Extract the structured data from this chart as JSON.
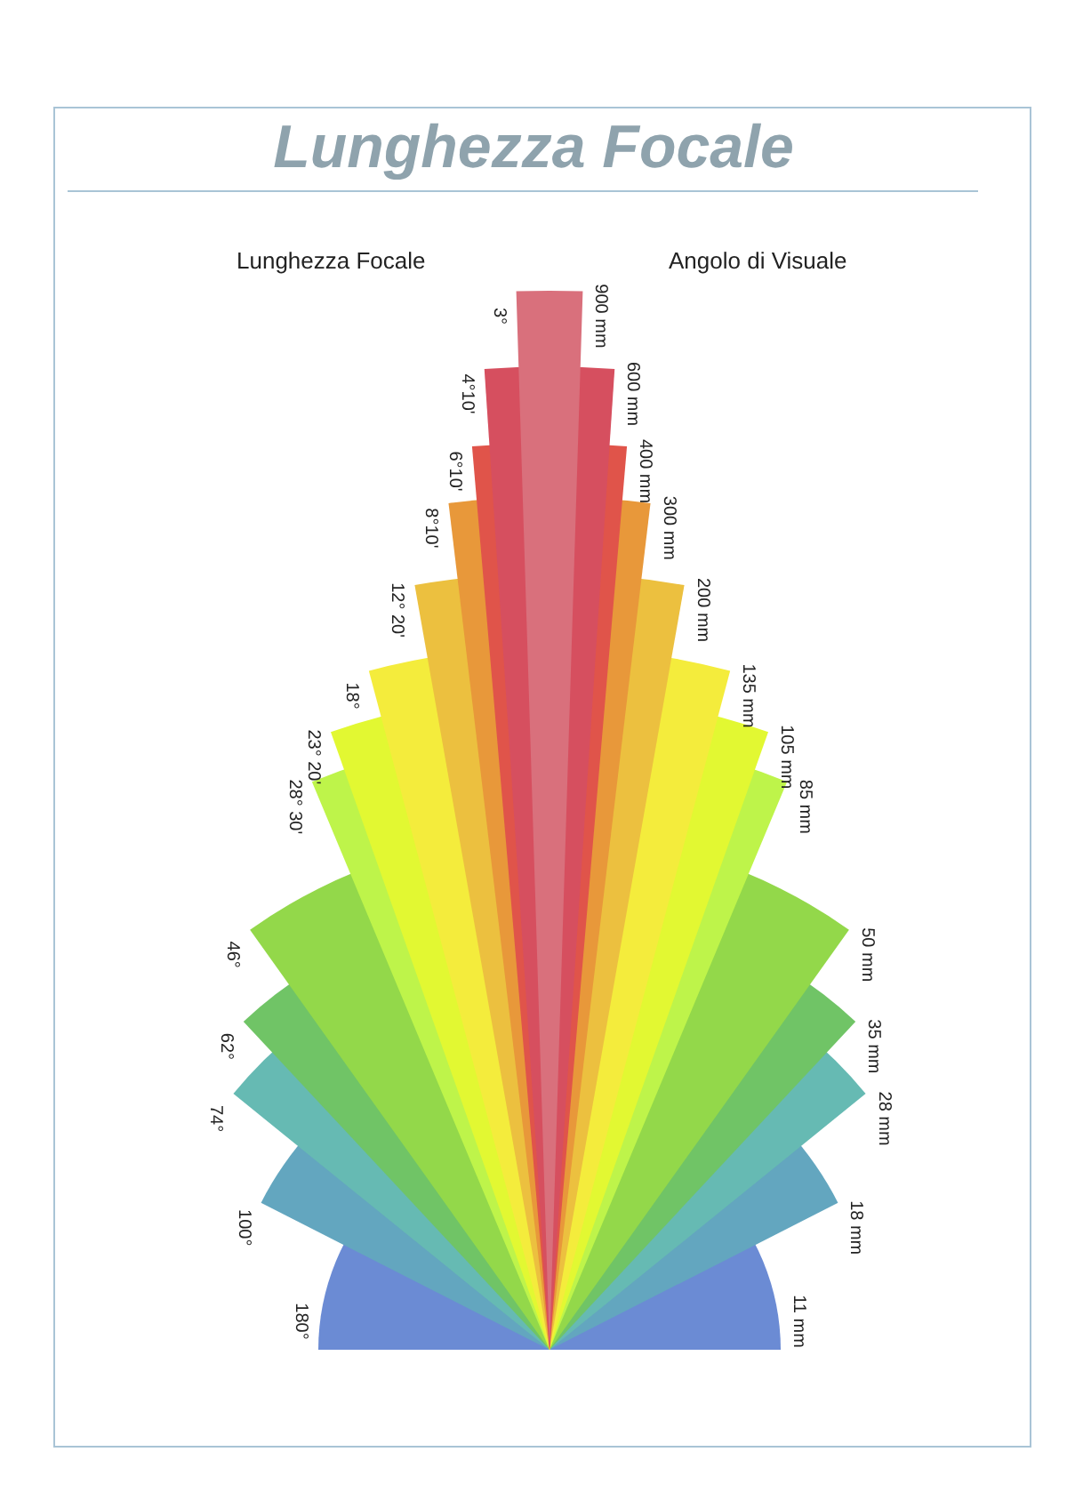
{
  "chart_data": {
    "type": "other",
    "title": "Lunghezza Focale",
    "annotations": [
      "Lunghezza Focale",
      "Angolo di Visuale"
    ],
    "categories": [
      "3°",
      "4°10'",
      "6°10'",
      "8°10'",
      "12° 20'",
      "18°",
      "23° 20'",
      "28° 30'",
      "46°",
      "62°",
      "74°",
      "100°",
      "180°"
    ],
    "values": [
      900,
      600,
      400,
      300,
      200,
      135,
      105,
      85,
      50,
      35,
      28,
      18,
      11
    ],
    "value_labels": [
      "900 mm",
      "600 mm",
      "400 mm",
      "300 mm",
      "200 mm",
      "135 mm",
      "105 mm",
      "85 mm",
      "50 mm",
      "35 mm",
      "28 mm",
      "18 mm",
      "11 mm"
    ],
    "colors": [
      "#d9707c",
      "#d64f5f",
      "#e0544a",
      "#e8983a",
      "#ecc03f",
      "#f4ec3c",
      "#e2f832",
      "#bef44a",
      "#93d84a",
      "#70c466",
      "#66bab3",
      "#63a6bf",
      "#6b8bd4"
    ]
  }
}
